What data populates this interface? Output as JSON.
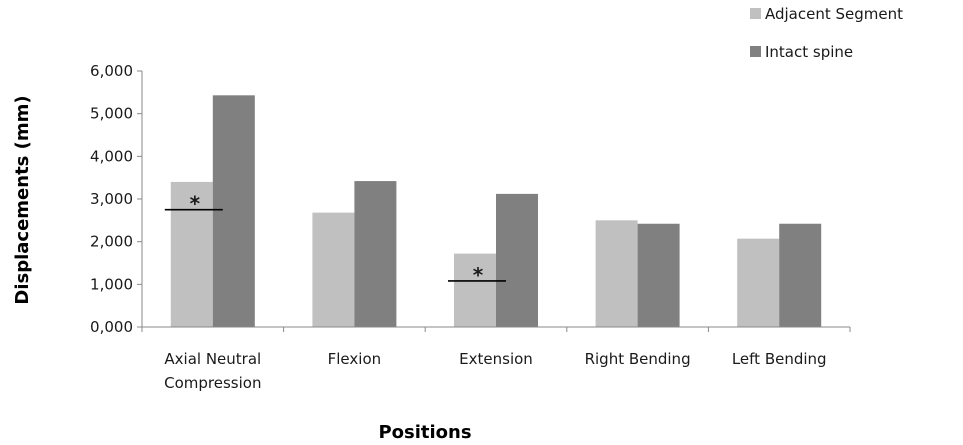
{
  "chart_data": {
    "type": "bar",
    "title": "",
    "xlabel": "Positions",
    "ylabel": "Displacements (mm)",
    "ylim": [
      0,
      6
    ],
    "yticks": [
      "0,000",
      "1,000",
      "2,000",
      "3,000",
      "4,000",
      "5,000",
      "6,000"
    ],
    "categories": [
      [
        "Axial Neutral",
        "Compression"
      ],
      [
        "Flexion"
      ],
      [
        "Extension"
      ],
      [
        "Right Bending"
      ],
      [
        "Left  Bending"
      ]
    ],
    "series": [
      {
        "name": "Adjacent Segment",
        "color": "#c0c0c0",
        "values": [
          3.4,
          2.68,
          1.72,
          2.5,
          2.07
        ]
      },
      {
        "name": "Intact  spine",
        "color": "#808080",
        "values": [
          5.43,
          3.42,
          3.12,
          2.42,
          2.42
        ]
      }
    ],
    "annotations": [
      {
        "category_index": 0,
        "text": "*",
        "y": 2.75
      },
      {
        "category_index": 2,
        "text": "*",
        "y": 1.08
      }
    ],
    "legend_position": "top-right",
    "grid": false
  }
}
